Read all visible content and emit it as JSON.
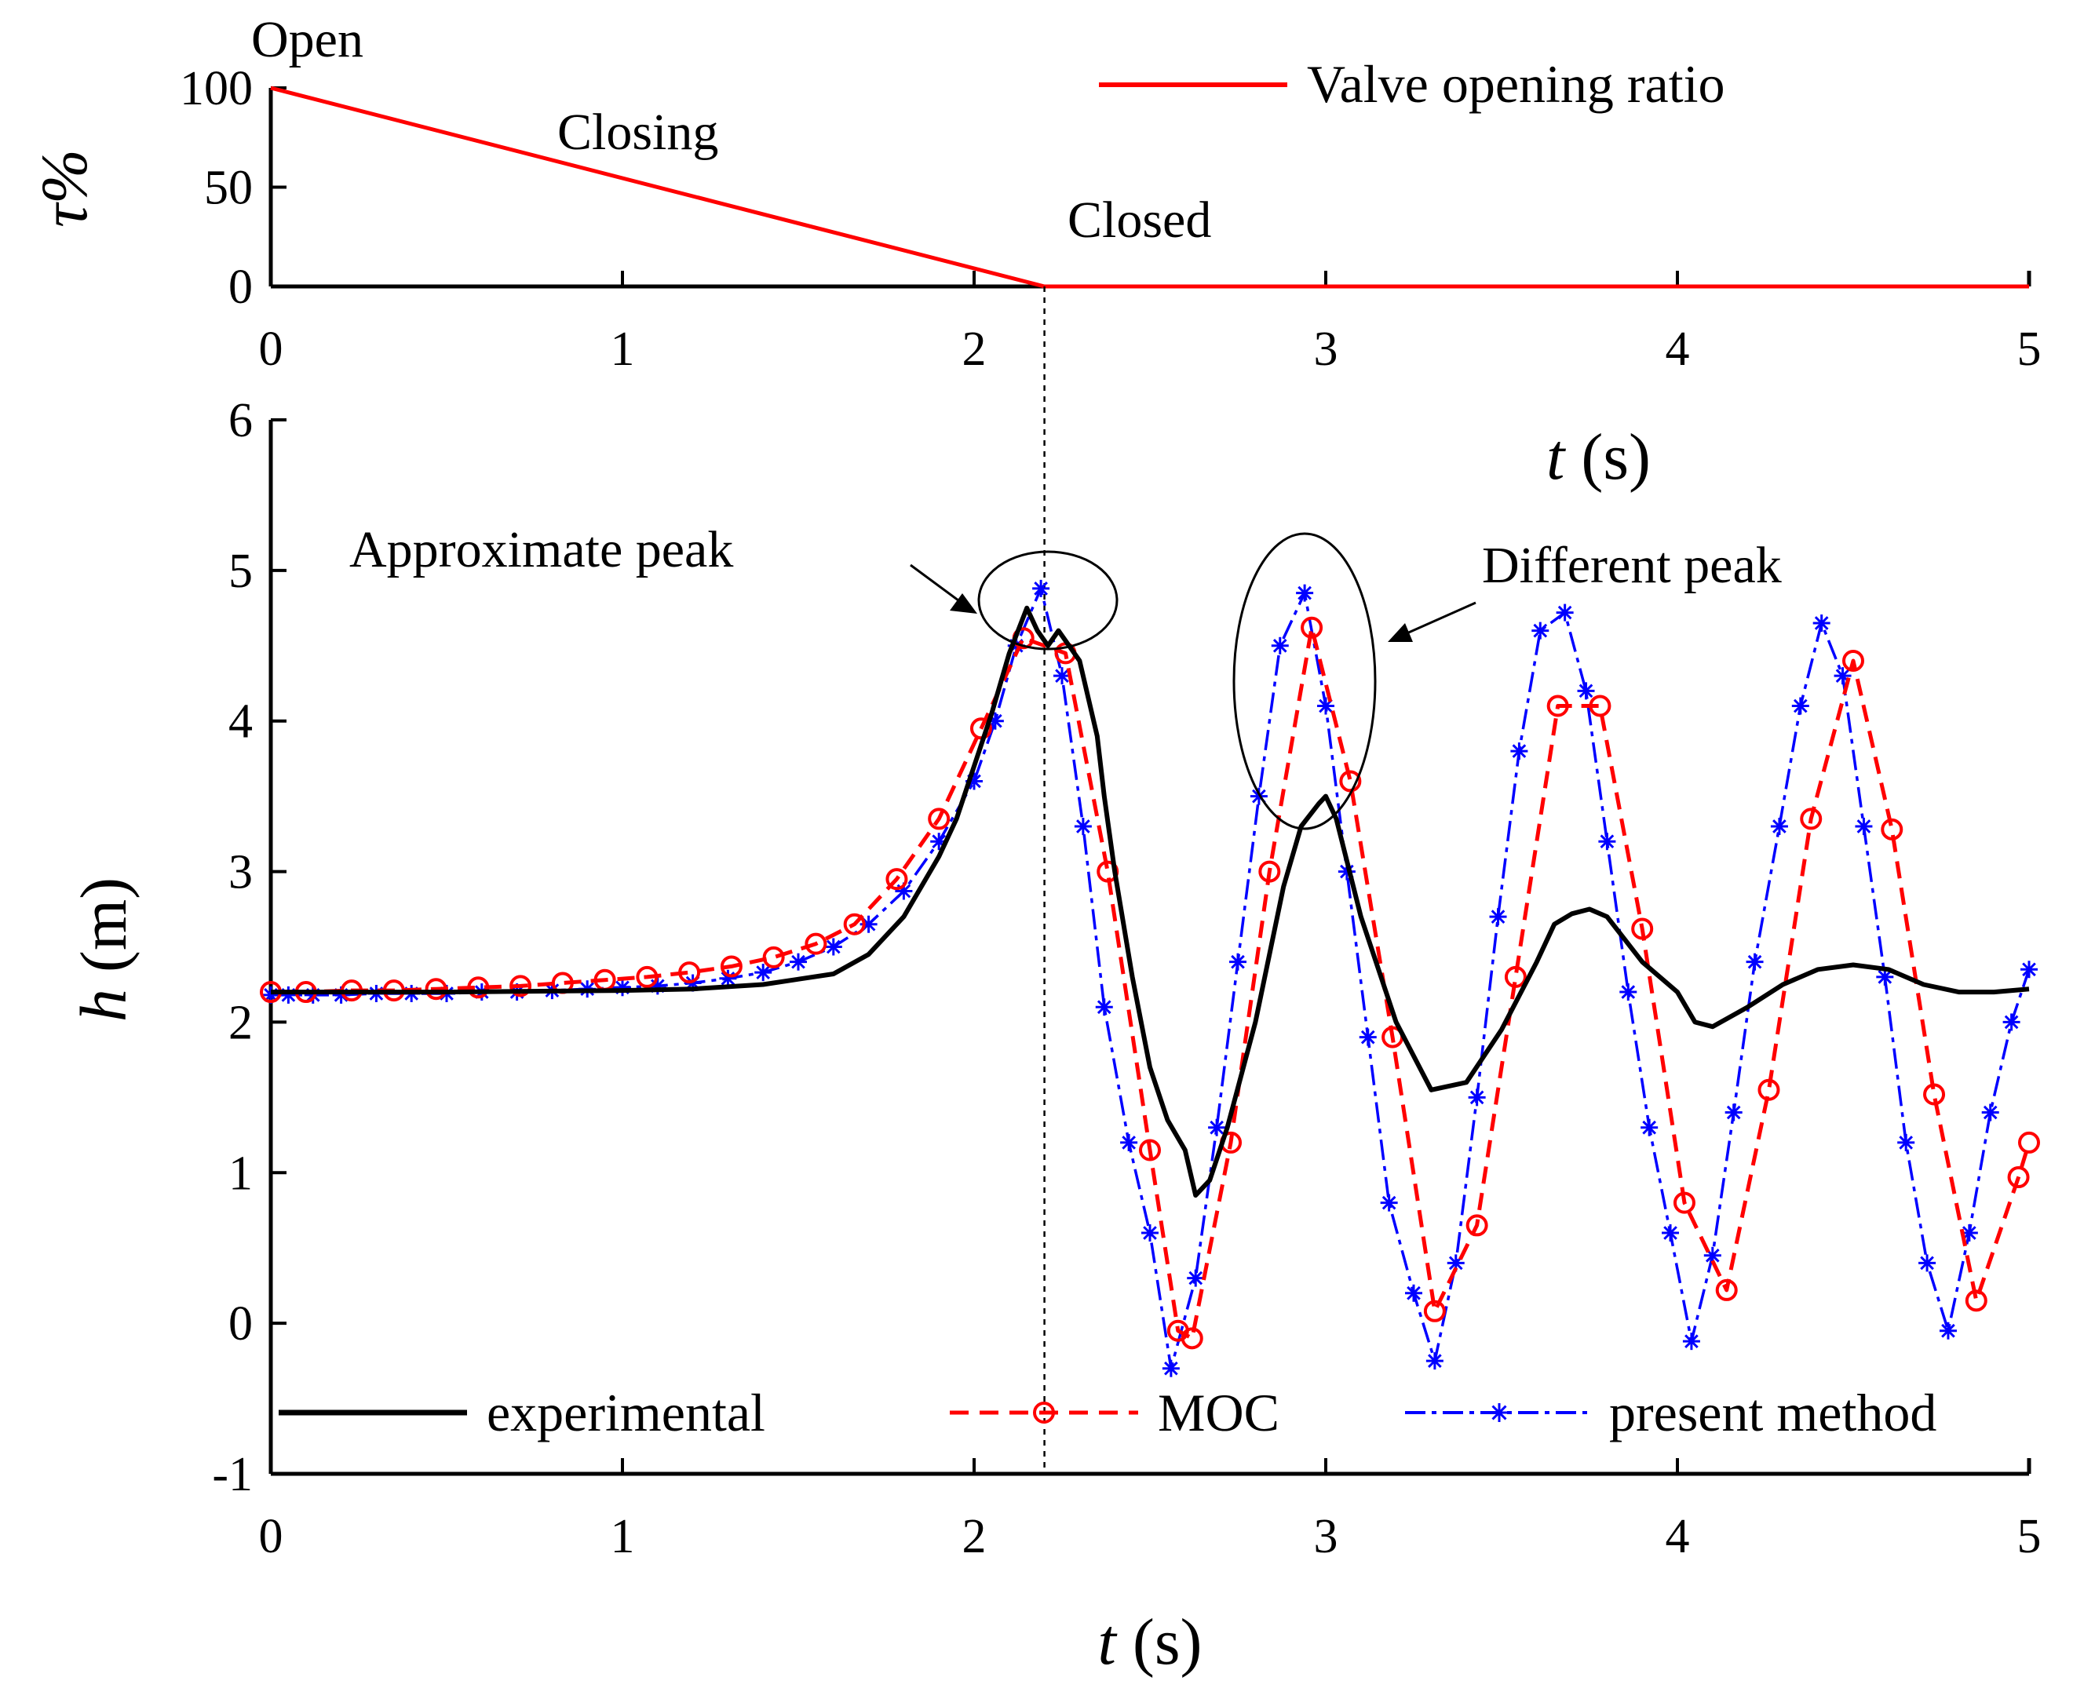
{
  "chart_data": [
    {
      "id": "valve",
      "type": "line",
      "ylabel": "τ%",
      "xlim": [
        0,
        5
      ],
      "ylim": [
        0,
        100
      ],
      "xticks": [
        "0",
        "1",
        "2",
        "3",
        "4",
        "5"
      ],
      "yticks": [
        "0",
        "50",
        "100"
      ],
      "series": [
        {
          "name": "Valve opening ratio",
          "color": "#ff0000",
          "x": [
            0,
            2.2,
            5
          ],
          "y": [
            100,
            0,
            0
          ]
        }
      ],
      "annotations": [
        "Open",
        "Closing",
        "Closed"
      ],
      "xlabel": {
        "var": "t",
        "unit": " (s)"
      }
    },
    {
      "id": "head",
      "type": "line",
      "xlim": [
        0,
        5
      ],
      "ylim": [
        -1,
        6
      ],
      "xticks": [
        "0",
        "1",
        "2",
        "3",
        "4",
        "5"
      ],
      "yticks": [
        "-1",
        "0",
        "1",
        "2",
        "3",
        "4",
        "5",
        "6"
      ],
      "xlabel": {
        "var": "t",
        "unit": " (s)"
      },
      "ylabel": {
        "var": "h",
        "unit": " (m)"
      },
      "vline_x": 2.2,
      "series": [
        {
          "name": "experimental",
          "color": "#000000",
          "x": [
            0,
            0.5,
            1.0,
            1.2,
            1.4,
            1.6,
            1.7,
            1.8,
            1.9,
            1.95,
            2.0,
            2.05,
            2.1,
            2.15,
            2.18,
            2.21,
            2.24,
            2.27,
            2.3,
            2.35,
            2.37,
            2.4,
            2.45,
            2.5,
            2.55,
            2.6,
            2.63,
            2.67,
            2.72,
            2.8,
            2.88,
            2.93,
            2.98,
            3.0,
            3.03,
            3.1,
            3.2,
            3.3,
            3.4,
            3.5,
            3.6,
            3.65,
            3.7,
            3.75,
            3.8,
            3.9,
            4.0,
            4.05,
            4.1,
            4.2,
            4.3,
            4.4,
            4.5,
            4.6,
            4.7,
            4.8,
            4.9,
            5.0
          ],
          "y": [
            2.2,
            2.2,
            2.21,
            2.22,
            2.25,
            2.32,
            2.45,
            2.7,
            3.1,
            3.35,
            3.7,
            4.05,
            4.45,
            4.75,
            4.6,
            4.5,
            4.6,
            4.5,
            4.4,
            3.9,
            3.5,
            3.0,
            2.3,
            1.7,
            1.35,
            1.15,
            0.85,
            0.95,
            1.3,
            2.0,
            2.9,
            3.3,
            3.45,
            3.5,
            3.35,
            2.7,
            2.0,
            1.55,
            1.6,
            1.95,
            2.4,
            2.65,
            2.72,
            2.75,
            2.7,
            2.4,
            2.2,
            2.0,
            1.97,
            2.1,
            2.25,
            2.35,
            2.38,
            2.35,
            2.25,
            2.2,
            2.2,
            2.22
          ]
        },
        {
          "name": "MOC",
          "color": "#ff0000",
          "marker": "circle",
          "x": [
            0,
            0.1,
            0.23,
            0.35,
            0.47,
            0.59,
            0.71,
            0.83,
            0.95,
            1.07,
            1.19,
            1.31,
            1.43,
            1.55,
            1.66,
            1.78,
            1.9,
            2.02,
            2.14,
            2.26,
            2.38,
            2.5,
            2.58,
            2.62,
            2.73,
            2.84,
            2.96,
            3.07,
            3.19,
            3.31,
            3.43,
            3.54,
            3.66,
            3.78,
            3.9,
            4.02,
            4.14,
            4.26,
            4.38,
            4.5,
            4.61,
            4.73,
            4.85,
            4.97,
            5.0
          ],
          "y": [
            2.2,
            2.2,
            2.21,
            2.21,
            2.22,
            2.23,
            2.24,
            2.26,
            2.28,
            2.3,
            2.33,
            2.37,
            2.43,
            2.52,
            2.65,
            2.95,
            3.35,
            3.95,
            4.55,
            4.45,
            3.0,
            1.15,
            -0.05,
            -0.1,
            1.2,
            3.0,
            4.62,
            3.6,
            1.9,
            0.08,
            0.65,
            2.3,
            4.1,
            4.1,
            2.62,
            0.8,
            0.22,
            1.55,
            3.35,
            4.4,
            3.28,
            1.52,
            0.15,
            0.97,
            1.2
          ]
        },
        {
          "name": "present method",
          "color": "#0000ff",
          "marker": "asterisk",
          "x": [
            0,
            0.05,
            0.12,
            0.2,
            0.3,
            0.4,
            0.5,
            0.6,
            0.7,
            0.8,
            0.9,
            1.0,
            1.1,
            1.2,
            1.3,
            1.4,
            1.5,
            1.6,
            1.7,
            1.8,
            1.9,
            2.0,
            2.06,
            2.12,
            2.19,
            2.25,
            2.31,
            2.37,
            2.44,
            2.5,
            2.56,
            2.63,
            2.69,
            2.75,
            2.81,
            2.87,
            2.94,
            3.0,
            3.06,
            3.12,
            3.18,
            3.25,
            3.31,
            3.37,
            3.43,
            3.49,
            3.55,
            3.61,
            3.68,
            3.74,
            3.8,
            3.86,
            3.92,
            3.98,
            4.04,
            4.1,
            4.16,
            4.22,
            4.29,
            4.35,
            4.41,
            4.47,
            4.53,
            4.59,
            4.65,
            4.71,
            4.77,
            4.83,
            4.89,
            4.95,
            5.0
          ],
          "y": [
            2.18,
            2.18,
            2.18,
            2.18,
            2.19,
            2.19,
            2.19,
            2.2,
            2.2,
            2.21,
            2.22,
            2.23,
            2.24,
            2.26,
            2.29,
            2.33,
            2.4,
            2.5,
            2.65,
            2.87,
            3.2,
            3.6,
            4.0,
            4.5,
            4.88,
            4.3,
            3.3,
            2.1,
            1.2,
            0.6,
            -0.3,
            0.3,
            1.3,
            2.4,
            3.5,
            4.5,
            4.85,
            4.1,
            3.0,
            1.9,
            0.8,
            0.2,
            -0.25,
            0.4,
            1.5,
            2.7,
            3.8,
            4.6,
            4.72,
            4.2,
            3.2,
            2.2,
            1.3,
            0.6,
            -0.12,
            0.45,
            1.4,
            2.4,
            3.3,
            4.1,
            4.65,
            4.3,
            3.3,
            2.3,
            1.2,
            0.4,
            -0.05,
            0.6,
            1.4,
            2.0,
            2.35
          ]
        }
      ],
      "annotations": [
        "Approximate peak",
        "Different peak"
      ]
    }
  ],
  "legend": {
    "valve_label": "Valve opening ratio",
    "experimental": "experimental",
    "moc": "MOC",
    "present": "present method"
  }
}
